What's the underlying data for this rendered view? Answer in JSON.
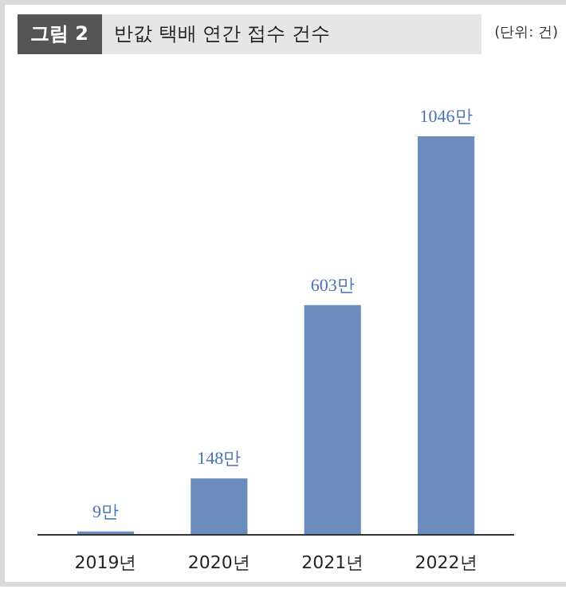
{
  "chart_data": {
    "type": "bar",
    "title": "반값 택배 연간 접수 건수",
    "subtitle": "그림 2",
    "annotations": [
      "(단위: 건)"
    ],
    "categories": [
      "2019년",
      "2020년",
      "2021년",
      "2022년"
    ],
    "values": [
      9,
      148,
      603,
      1046
    ],
    "value_labels": [
      "9만",
      "148만",
      "603만",
      "1046만"
    ],
    "color": "#6b8cbd"
  }
}
